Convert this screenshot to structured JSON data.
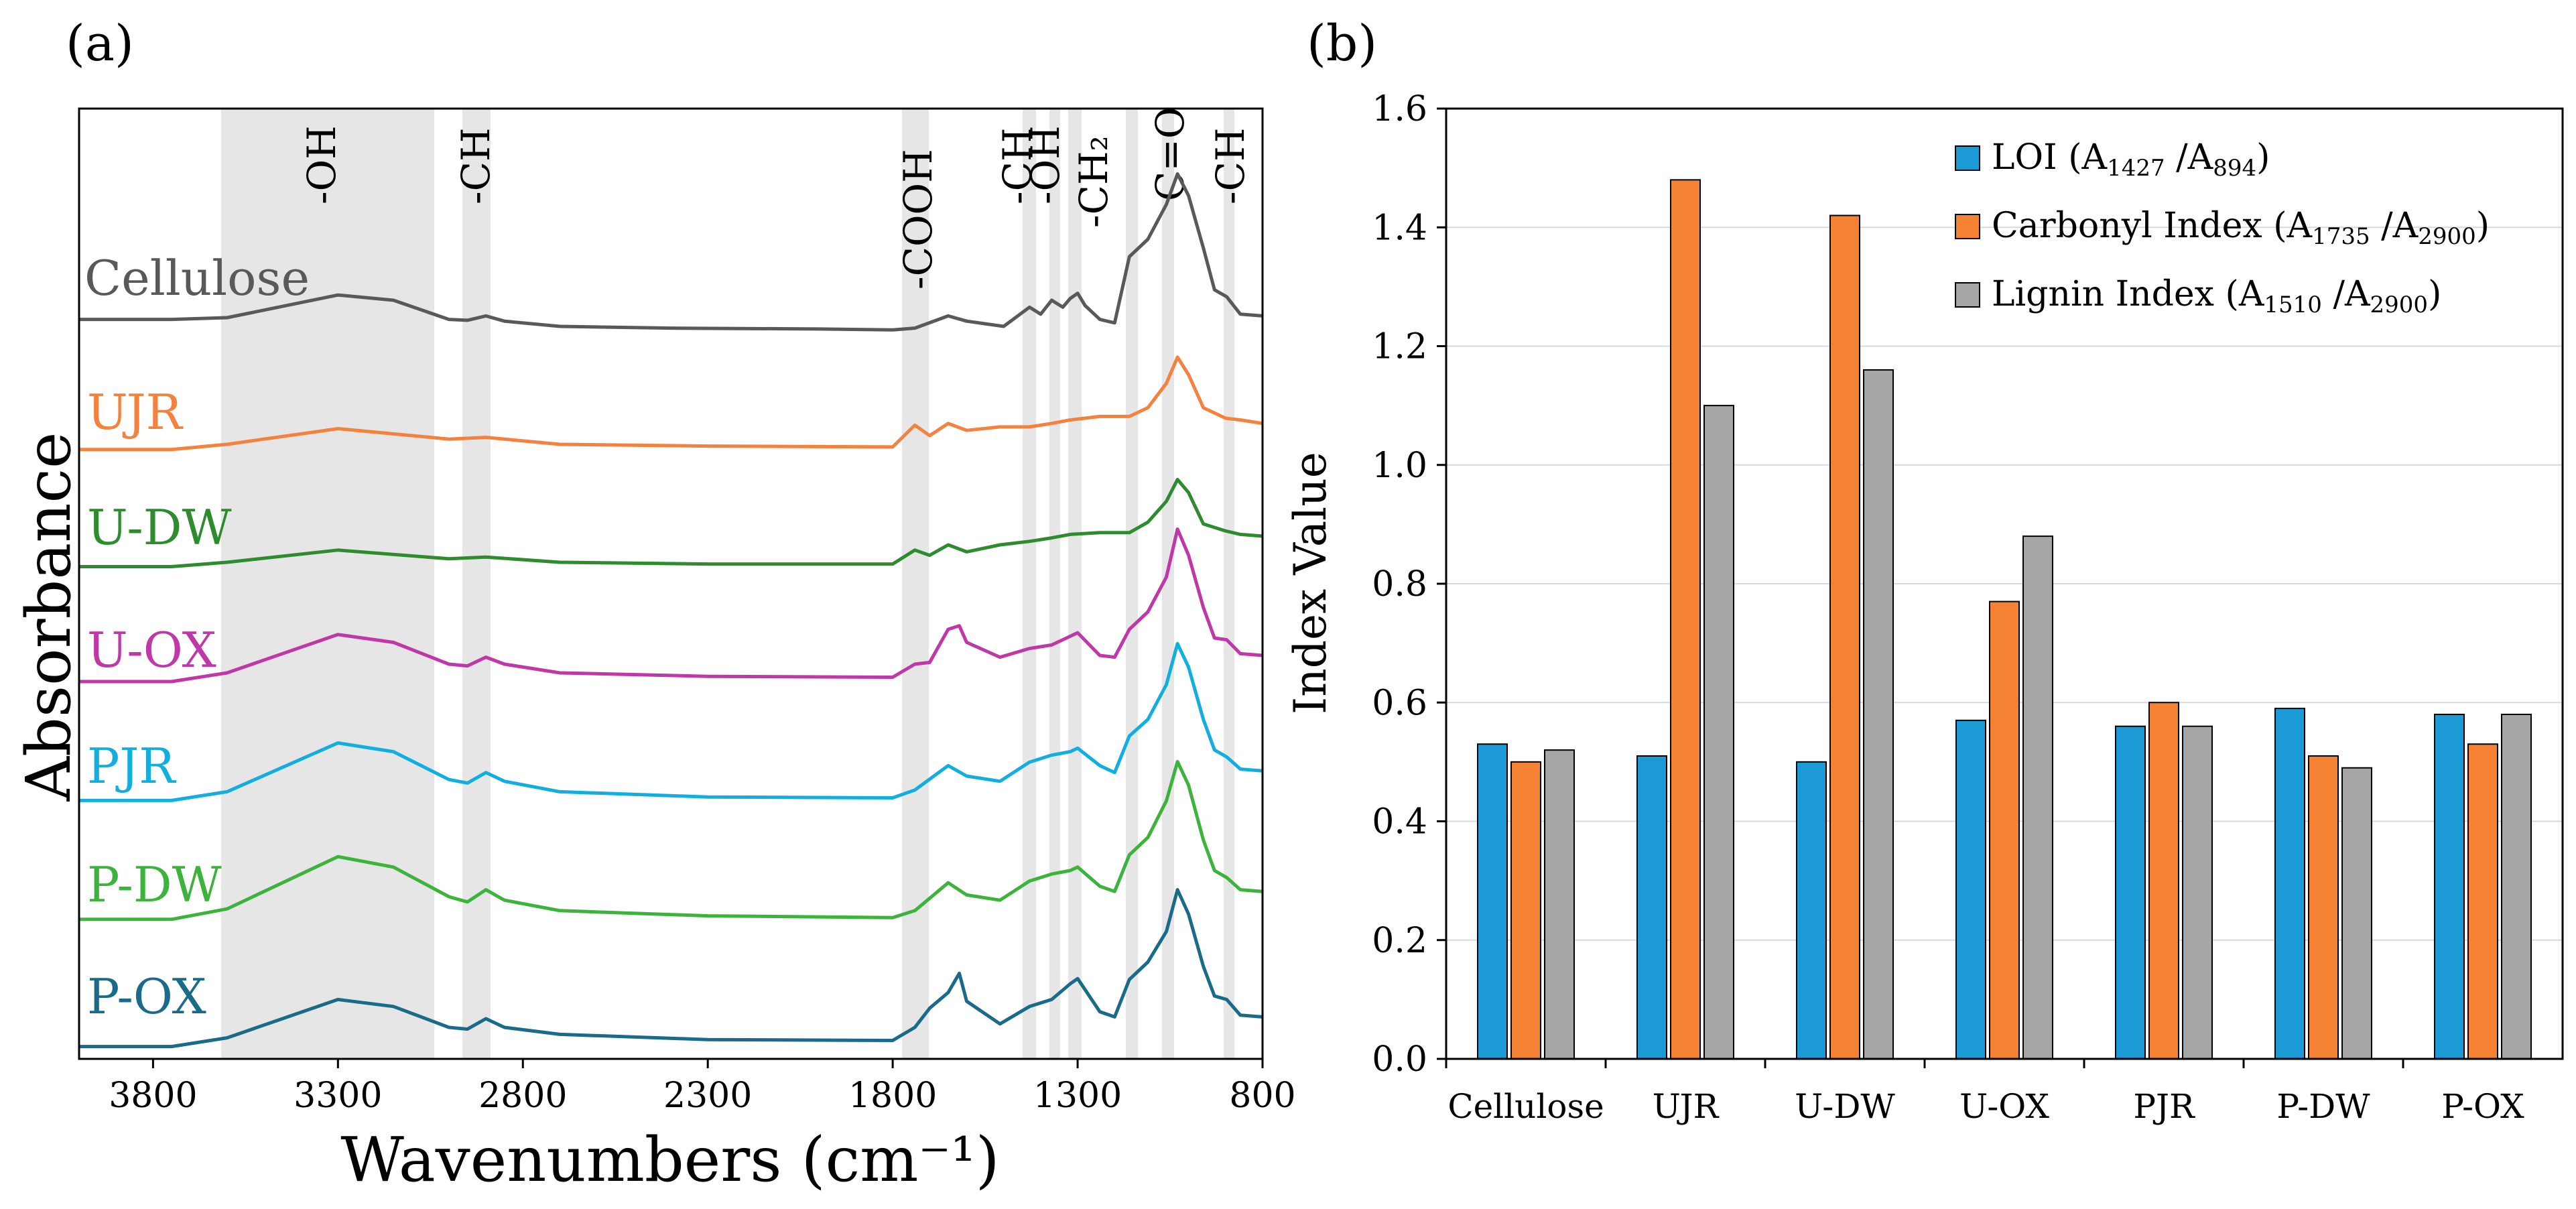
{
  "panel_a": {
    "panel_label": "(a)",
    "chart_data": {
      "type": "line",
      "xlabel": "Wavenumbers (cm⁻¹)",
      "ylabel": "Absorbance",
      "xlim": [
        4000,
        800
      ],
      "xticks": [
        3800,
        3300,
        2800,
        2300,
        1800,
        1300,
        800
      ],
      "band_labels": [
        "-OH",
        "-CH",
        "-COOH",
        "-CH",
        "-OH",
        "-CH₂",
        "C=O",
        "-CH"
      ],
      "series": [
        {
          "name": "Cellulose",
          "color": "#595959",
          "points": [
            [
              4000,
              0.18
            ],
            [
              3750,
              0.18
            ],
            [
              3600,
              0.2
            ],
            [
              3300,
              0.46
            ],
            [
              3150,
              0.4
            ],
            [
              3000,
              0.18
            ],
            [
              2950,
              0.17
            ],
            [
              2900,
              0.22
            ],
            [
              2850,
              0.16
            ],
            [
              2700,
              0.1
            ],
            [
              2400,
              0.08
            ],
            [
              2000,
              0.07
            ],
            [
              1800,
              0.06
            ],
            [
              1740,
              0.08
            ],
            [
              1650,
              0.22
            ],
            [
              1600,
              0.16
            ],
            [
              1500,
              0.1
            ],
            [
              1430,
              0.32
            ],
            [
              1400,
              0.24
            ],
            [
              1370,
              0.4
            ],
            [
              1340,
              0.32
            ],
            [
              1320,
              0.42
            ],
            [
              1300,
              0.48
            ],
            [
              1280,
              0.34
            ],
            [
              1240,
              0.18
            ],
            [
              1200,
              0.14
            ],
            [
              1160,
              0.9
            ],
            [
              1110,
              1.1
            ],
            [
              1060,
              1.5
            ],
            [
              1030,
              1.85
            ],
            [
              1000,
              1.6
            ],
            [
              960,
              1.0
            ],
            [
              930,
              0.52
            ],
            [
              897,
              0.44
            ],
            [
              860,
              0.24
            ],
            [
              800,
              0.22
            ]
          ]
        },
        {
          "name": "UJR",
          "color": "#f4813d",
          "points": [
            [
              4000,
              0.04
            ],
            [
              3750,
              0.04
            ],
            [
              3600,
              0.1
            ],
            [
              3300,
              0.28
            ],
            [
              3000,
              0.16
            ],
            [
              2900,
              0.18
            ],
            [
              2700,
              0.1
            ],
            [
              2300,
              0.08
            ],
            [
              1800,
              0.07
            ],
            [
              1740,
              0.32
            ],
            [
              1700,
              0.2
            ],
            [
              1650,
              0.34
            ],
            [
              1600,
              0.26
            ],
            [
              1510,
              0.3
            ],
            [
              1430,
              0.3
            ],
            [
              1370,
              0.34
            ],
            [
              1320,
              0.38
            ],
            [
              1240,
              0.42
            ],
            [
              1160,
              0.42
            ],
            [
              1110,
              0.52
            ],
            [
              1060,
              0.8
            ],
            [
              1030,
              1.1
            ],
            [
              1000,
              0.9
            ],
            [
              960,
              0.52
            ],
            [
              900,
              0.4
            ],
            [
              860,
              0.38
            ],
            [
              800,
              0.34
            ]
          ]
        },
        {
          "name": "U-DW",
          "color": "#2e8b2e",
          "points": [
            [
              4000,
              0.05
            ],
            [
              3750,
              0.05
            ],
            [
              3600,
              0.1
            ],
            [
              3300,
              0.24
            ],
            [
              3000,
              0.14
            ],
            [
              2900,
              0.16
            ],
            [
              2700,
              0.1
            ],
            [
              2300,
              0.08
            ],
            [
              1800,
              0.08
            ],
            [
              1740,
              0.24
            ],
            [
              1700,
              0.18
            ],
            [
              1650,
              0.3
            ],
            [
              1600,
              0.22
            ],
            [
              1510,
              0.3
            ],
            [
              1430,
              0.34
            ],
            [
              1370,
              0.38
            ],
            [
              1320,
              0.42
            ],
            [
              1240,
              0.44
            ],
            [
              1160,
              0.44
            ],
            [
              1110,
              0.56
            ],
            [
              1060,
              0.8
            ],
            [
              1030,
              1.05
            ],
            [
              1000,
              0.9
            ],
            [
              960,
              0.54
            ],
            [
              900,
              0.46
            ],
            [
              860,
              0.42
            ],
            [
              800,
              0.4
            ]
          ]
        },
        {
          "name": "U-OX",
          "color": "#c038a8",
          "points": [
            [
              4000,
              0.1
            ],
            [
              3750,
              0.1
            ],
            [
              3600,
              0.2
            ],
            [
              3300,
              0.64
            ],
            [
              3150,
              0.55
            ],
            [
              3000,
              0.3
            ],
            [
              2950,
              0.28
            ],
            [
              2900,
              0.38
            ],
            [
              2850,
              0.3
            ],
            [
              2700,
              0.2
            ],
            [
              2300,
              0.16
            ],
            [
              1800,
              0.15
            ],
            [
              1740,
              0.3
            ],
            [
              1700,
              0.32
            ],
            [
              1650,
              0.7
            ],
            [
              1620,
              0.74
            ],
            [
              1600,
              0.55
            ],
            [
              1510,
              0.38
            ],
            [
              1430,
              0.48
            ],
            [
              1370,
              0.52
            ],
            [
              1320,
              0.62
            ],
            [
              1300,
              0.66
            ],
            [
              1240,
              0.4
            ],
            [
              1200,
              0.38
            ],
            [
              1160,
              0.7
            ],
            [
              1110,
              0.9
            ],
            [
              1060,
              1.3
            ],
            [
              1030,
              1.85
            ],
            [
              1000,
              1.55
            ],
            [
              960,
              0.95
            ],
            [
              930,
              0.6
            ],
            [
              897,
              0.58
            ],
            [
              860,
              0.42
            ],
            [
              800,
              0.4
            ]
          ]
        },
        {
          "name": "PJR",
          "color": "#12aee0",
          "points": [
            [
              4000,
              0.12
            ],
            [
              3750,
              0.12
            ],
            [
              3600,
              0.22
            ],
            [
              3300,
              0.78
            ],
            [
              3150,
              0.68
            ],
            [
              3000,
              0.36
            ],
            [
              2950,
              0.32
            ],
            [
              2900,
              0.44
            ],
            [
              2850,
              0.34
            ],
            [
              2700,
              0.22
            ],
            [
              2300,
              0.16
            ],
            [
              1800,
              0.15
            ],
            [
              1740,
              0.24
            ],
            [
              1650,
              0.52
            ],
            [
              1600,
              0.4
            ],
            [
              1510,
              0.34
            ],
            [
              1430,
              0.56
            ],
            [
              1370,
              0.64
            ],
            [
              1320,
              0.68
            ],
            [
              1300,
              0.72
            ],
            [
              1240,
              0.52
            ],
            [
              1200,
              0.44
            ],
            [
              1160,
              0.86
            ],
            [
              1110,
              1.05
            ],
            [
              1060,
              1.45
            ],
            [
              1030,
              1.92
            ],
            [
              1000,
              1.65
            ],
            [
              960,
              1.05
            ],
            [
              930,
              0.7
            ],
            [
              897,
              0.62
            ],
            [
              860,
              0.48
            ],
            [
              800,
              0.46
            ]
          ]
        },
        {
          "name": "P-DW",
          "color": "#3cb43c",
          "points": [
            [
              4000,
              0.14
            ],
            [
              3750,
              0.14
            ],
            [
              3600,
              0.26
            ],
            [
              3300,
              0.86
            ],
            [
              3150,
              0.74
            ],
            [
              3000,
              0.4
            ],
            [
              2950,
              0.34
            ],
            [
              2900,
              0.48
            ],
            [
              2850,
              0.36
            ],
            [
              2700,
              0.24
            ],
            [
              2300,
              0.18
            ],
            [
              1800,
              0.16
            ],
            [
              1740,
              0.24
            ],
            [
              1650,
              0.56
            ],
            [
              1600,
              0.42
            ],
            [
              1510,
              0.36
            ],
            [
              1430,
              0.58
            ],
            [
              1370,
              0.66
            ],
            [
              1320,
              0.7
            ],
            [
              1300,
              0.74
            ],
            [
              1240,
              0.52
            ],
            [
              1200,
              0.46
            ],
            [
              1160,
              0.88
            ],
            [
              1110,
              1.08
            ],
            [
              1060,
              1.5
            ],
            [
              1030,
              1.95
            ],
            [
              1000,
              1.68
            ],
            [
              960,
              1.05
            ],
            [
              930,
              0.7
            ],
            [
              897,
              0.62
            ],
            [
              860,
              0.48
            ],
            [
              800,
              0.46
            ]
          ]
        },
        {
          "name": "P-OX",
          "color": "#1a6a8a",
          "points": [
            [
              4000,
              0.08
            ],
            [
              3750,
              0.08
            ],
            [
              3600,
              0.18
            ],
            [
              3300,
              0.62
            ],
            [
              3150,
              0.54
            ],
            [
              3000,
              0.3
            ],
            [
              2950,
              0.28
            ],
            [
              2900,
              0.4
            ],
            [
              2850,
              0.3
            ],
            [
              2700,
              0.22
            ],
            [
              2300,
              0.16
            ],
            [
              1800,
              0.15
            ],
            [
              1740,
              0.3
            ],
            [
              1700,
              0.52
            ],
            [
              1650,
              0.7
            ],
            [
              1620,
              0.92
            ],
            [
              1600,
              0.6
            ],
            [
              1510,
              0.34
            ],
            [
              1430,
              0.54
            ],
            [
              1370,
              0.62
            ],
            [
              1320,
              0.8
            ],
            [
              1300,
              0.86
            ],
            [
              1240,
              0.48
            ],
            [
              1200,
              0.42
            ],
            [
              1160,
              0.85
            ],
            [
              1110,
              1.05
            ],
            [
              1060,
              1.4
            ],
            [
              1030,
              1.88
            ],
            [
              1000,
              1.6
            ],
            [
              960,
              1.0
            ],
            [
              930,
              0.66
            ],
            [
              897,
              0.62
            ],
            [
              860,
              0.44
            ],
            [
              800,
              0.42
            ]
          ]
        }
      ]
    }
  },
  "panel_b": {
    "panel_label": "(b)",
    "chart_data": {
      "type": "bar",
      "ylabel": "Index Value",
      "ylim": [
        0,
        1.6
      ],
      "yticks": [
        "0.0",
        "0.2",
        "0.4",
        "0.6",
        "0.8",
        "1.0",
        "1.2",
        "1.4",
        "1.6"
      ],
      "grid": true,
      "legend_position": "top-right",
      "categories": [
        "Cellulose",
        "UJR",
        "U-DW",
        "U-OX",
        "PJR",
        "P-DW",
        "P-OX"
      ],
      "series": [
        {
          "name": "LOI",
          "legend_main": "LOI (A",
          "legend_sub1": "1427",
          "legend_mid": " /A",
          "legend_sub2": "894",
          "legend_end": ")",
          "color": "#1b9ad6",
          "values": [
            0.53,
            0.51,
            0.5,
            0.57,
            0.56,
            0.59,
            0.58
          ]
        },
        {
          "name": "Carbonyl Index",
          "legend_main": "Carbonyl Index (A",
          "legend_sub1": "1735",
          "legend_mid": " /A",
          "legend_sub2": "2900",
          "legend_end": ")",
          "color": "#f58233",
          "values": [
            0.5,
            1.48,
            1.42,
            0.77,
            0.6,
            0.51,
            0.53
          ]
        },
        {
          "name": "Lignin Index",
          "legend_main": "Lignin Index (A",
          "legend_sub1": "1510",
          "legend_mid": " /A",
          "legend_sub2": "2900",
          "legend_end": ")",
          "color": "#a6a6a6",
          "values": [
            0.52,
            1.1,
            1.16,
            0.88,
            0.56,
            0.49,
            0.58
          ]
        }
      ]
    }
  }
}
